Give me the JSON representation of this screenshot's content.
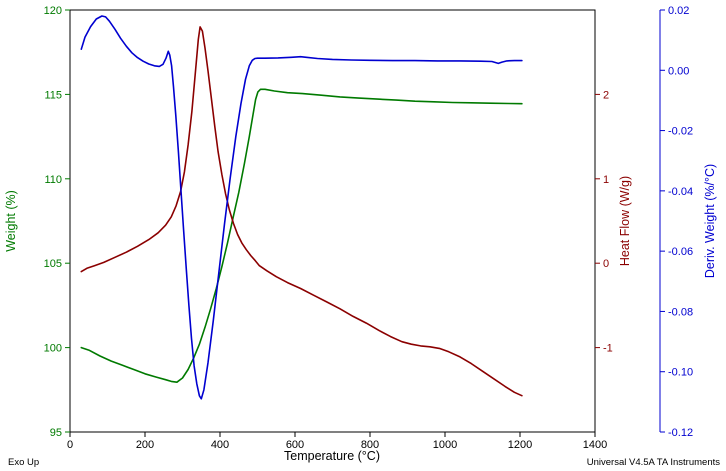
{
  "footer": {
    "exo_up": "Exo Up",
    "credit": "Universal V4.5A TA Instruments"
  },
  "chart_data": {
    "type": "line",
    "grid": false,
    "legend": false,
    "x_axis": {
      "label": "Temperature (°C)",
      "range": [
        0,
        1400
      ],
      "ticks": [
        "0",
        "200",
        "400",
        "600",
        "800",
        "1000",
        "1200",
        "1400"
      ],
      "color": "#000000"
    },
    "axes": {
      "weight": {
        "label": "Weight (%)",
        "side": "left",
        "range": [
          95,
          120
        ],
        "ticks": [
          "95",
          "100",
          "105",
          "110",
          "115",
          "120"
        ],
        "color": "#007a00"
      },
      "heat_flow": {
        "label": "Heat Flow (W/g)",
        "side": "right",
        "range": [
          -2,
          3
        ],
        "ticks": [
          "-1",
          "0",
          "1",
          "2"
        ],
        "color": "#8b0000"
      },
      "deriv_weight": {
        "label": "Deriv. Weight (%/°C)",
        "side": "right-outer",
        "range": [
          -0.12,
          0.02
        ],
        "ticks": [
          "-0.12",
          "-0.10",
          "-0.08",
          "-0.06",
          "-0.04",
          "-0.02",
          "0.00",
          "0.02"
        ],
        "color": "#0000d0"
      }
    },
    "series": [
      {
        "name": "Weight (%)",
        "axis": "weight",
        "color": "#007a00",
        "points": [
          [
            30,
            100.0
          ],
          [
            50,
            99.85
          ],
          [
            80,
            99.5
          ],
          [
            110,
            99.2
          ],
          [
            140,
            98.95
          ],
          [
            170,
            98.7
          ],
          [
            200,
            98.45
          ],
          [
            230,
            98.25
          ],
          [
            255,
            98.1
          ],
          [
            270,
            98.0
          ],
          [
            285,
            97.95
          ],
          [
            300,
            98.2
          ],
          [
            315,
            98.7
          ],
          [
            330,
            99.4
          ],
          [
            345,
            100.2
          ],
          [
            360,
            101.2
          ],
          [
            375,
            102.3
          ],
          [
            390,
            103.5
          ],
          [
            405,
            104.8
          ],
          [
            420,
            106.2
          ],
          [
            435,
            107.7
          ],
          [
            450,
            109.2
          ],
          [
            465,
            110.9
          ],
          [
            478,
            112.5
          ],
          [
            488,
            113.8
          ],
          [
            495,
            114.7
          ],
          [
            501,
            115.15
          ],
          [
            508,
            115.3
          ],
          [
            520,
            115.3
          ],
          [
            545,
            115.2
          ],
          [
            580,
            115.1
          ],
          [
            620,
            115.05
          ],
          [
            670,
            114.95
          ],
          [
            720,
            114.85
          ],
          [
            770,
            114.78
          ],
          [
            820,
            114.72
          ],
          [
            870,
            114.66
          ],
          [
            920,
            114.6
          ],
          [
            970,
            114.56
          ],
          [
            1020,
            114.52
          ],
          [
            1070,
            114.5
          ],
          [
            1120,
            114.48
          ],
          [
            1170,
            114.46
          ],
          [
            1205,
            114.45
          ]
        ]
      },
      {
        "name": "Heat Flow (W/g)",
        "axis": "heat_flow",
        "color": "#8b0000",
        "points": [
          [
            30,
            -0.1
          ],
          [
            45,
            -0.06
          ],
          [
            65,
            -0.03
          ],
          [
            90,
            0.01
          ],
          [
            120,
            0.07
          ],
          [
            150,
            0.13
          ],
          [
            180,
            0.2
          ],
          [
            210,
            0.28
          ],
          [
            235,
            0.36
          ],
          [
            255,
            0.45
          ],
          [
            270,
            0.55
          ],
          [
            283,
            0.68
          ],
          [
            295,
            0.85
          ],
          [
            305,
            1.08
          ],
          [
            315,
            1.4
          ],
          [
            325,
            1.8
          ],
          [
            334,
            2.25
          ],
          [
            342,
            2.65
          ],
          [
            347,
            2.8
          ],
          [
            353,
            2.75
          ],
          [
            360,
            2.55
          ],
          [
            368,
            2.28
          ],
          [
            377,
            1.95
          ],
          [
            386,
            1.62
          ],
          [
            395,
            1.32
          ],
          [
            405,
            1.05
          ],
          [
            415,
            0.82
          ],
          [
            425,
            0.63
          ],
          [
            436,
            0.47
          ],
          [
            447,
            0.34
          ],
          [
            458,
            0.24
          ],
          [
            470,
            0.16
          ],
          [
            482,
            0.09
          ],
          [
            494,
            0.03
          ],
          [
            505,
            -0.03
          ],
          [
            525,
            -0.09
          ],
          [
            550,
            -0.16
          ],
          [
            580,
            -0.23
          ],
          [
            615,
            -0.3
          ],
          [
            650,
            -0.38
          ],
          [
            685,
            -0.46
          ],
          [
            720,
            -0.54
          ],
          [
            755,
            -0.63
          ],
          [
            790,
            -0.71
          ],
          [
            825,
            -0.8
          ],
          [
            855,
            -0.87
          ],
          [
            885,
            -0.93
          ],
          [
            910,
            -0.96
          ],
          [
            935,
            -0.98
          ],
          [
            960,
            -0.99
          ],
          [
            985,
            -1.01
          ],
          [
            1010,
            -1.05
          ],
          [
            1040,
            -1.11
          ],
          [
            1070,
            -1.19
          ],
          [
            1100,
            -1.28
          ],
          [
            1130,
            -1.37
          ],
          [
            1160,
            -1.46
          ],
          [
            1185,
            -1.53
          ],
          [
            1205,
            -1.57
          ]
        ]
      },
      {
        "name": "Deriv. Weight (%/°C)",
        "axis": "deriv_weight",
        "color": "#0000d0",
        "points": [
          [
            30,
            0.007
          ],
          [
            40,
            0.011
          ],
          [
            55,
            0.0145
          ],
          [
            70,
            0.017
          ],
          [
            85,
            0.018
          ],
          [
            95,
            0.0177
          ],
          [
            105,
            0.0163
          ],
          [
            120,
            0.0136
          ],
          [
            135,
            0.0106
          ],
          [
            150,
            0.008
          ],
          [
            165,
            0.0058
          ],
          [
            180,
            0.0042
          ],
          [
            195,
            0.003
          ],
          [
            210,
            0.0021
          ],
          [
            225,
            0.0015
          ],
          [
            238,
            0.0013
          ],
          [
            248,
            0.002
          ],
          [
            256,
            0.004
          ],
          [
            262,
            0.0063
          ],
          [
            266,
            0.005
          ],
          [
            271,
            0.0015
          ],
          [
            276,
            -0.0055
          ],
          [
            282,
            -0.015
          ],
          [
            289,
            -0.027
          ],
          [
            296,
            -0.04
          ],
          [
            303,
            -0.053
          ],
          [
            310,
            -0.066
          ],
          [
            317,
            -0.078
          ],
          [
            324,
            -0.089
          ],
          [
            331,
            -0.098
          ],
          [
            338,
            -0.104
          ],
          [
            345,
            -0.108
          ],
          [
            350,
            -0.109
          ],
          [
            357,
            -0.106
          ],
          [
            368,
            -0.097
          ],
          [
            382,
            -0.083
          ],
          [
            397,
            -0.067
          ],
          [
            412,
            -0.051
          ],
          [
            427,
            -0.036
          ],
          [
            442,
            -0.022
          ],
          [
            456,
            -0.011
          ],
          [
            468,
            -0.003
          ],
          [
            478,
            0.0015
          ],
          [
            486,
            0.0033
          ],
          [
            493,
            0.0039
          ],
          [
            500,
            0.004
          ],
          [
            520,
            0.004
          ],
          [
            555,
            0.0041
          ],
          [
            590,
            0.0043
          ],
          [
            615,
            0.0045
          ],
          [
            630,
            0.0043
          ],
          [
            660,
            0.0039
          ],
          [
            700,
            0.0036
          ],
          [
            750,
            0.0034
          ],
          [
            800,
            0.0033
          ],
          [
            860,
            0.0032
          ],
          [
            920,
            0.0032
          ],
          [
            980,
            0.0031
          ],
          [
            1040,
            0.0031
          ],
          [
            1095,
            0.003
          ],
          [
            1125,
            0.0029
          ],
          [
            1142,
            0.0023
          ],
          [
            1152,
            0.0027
          ],
          [
            1165,
            0.0031
          ],
          [
            1185,
            0.0032
          ],
          [
            1205,
            0.0032
          ]
        ]
      }
    ]
  }
}
